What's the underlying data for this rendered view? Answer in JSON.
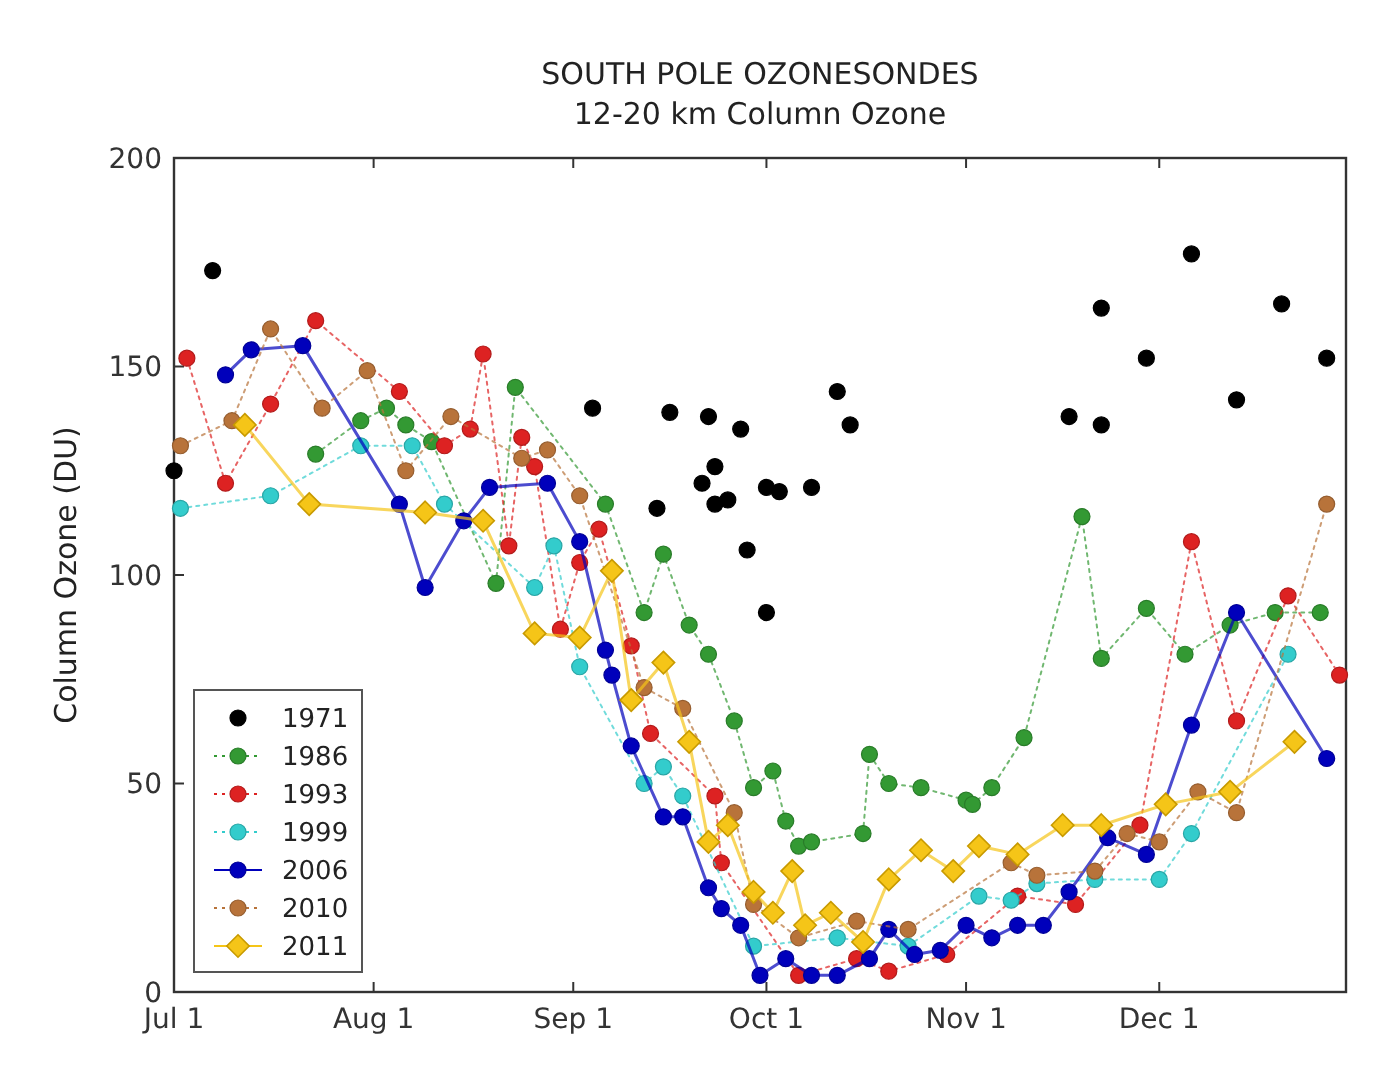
{
  "chart_data": {
    "type": "scatter",
    "title": "SOUTH POLE OZONESONDES",
    "subtitle": "12-20 km Column Ozone",
    "ylabel": "Column Ozone (DU)",
    "xlim": [
      "--07-01",
      "--12-30"
    ],
    "xticks": [
      {
        "value": "--07-01",
        "label": "Jul 1"
      },
      {
        "value": "--08-01",
        "label": "Aug 1"
      },
      {
        "value": "--09-01",
        "label": "Sep 1"
      },
      {
        "value": "--10-01",
        "label": "Oct 1"
      },
      {
        "value": "--11-01",
        "label": "Nov 1"
      },
      {
        "value": "--12-01",
        "label": "Dec 1"
      }
    ],
    "ylim": [
      0,
      200
    ],
    "yticks": [
      0,
      50,
      100,
      150,
      200
    ],
    "grid": false,
    "legend": "bottom left",
    "series": [
      {
        "name": "1971",
        "type": "scatter",
        "marker": "circle",
        "color": "#000000",
        "x": [
          "--07-01",
          "--07-07",
          "--09-04",
          "--09-14",
          "--09-16",
          "--09-21",
          "--09-22",
          "--09-23",
          "--09-23",
          "--09-25",
          "--09-27",
          "--09-28",
          "--10-01",
          "--10-01",
          "--10-03",
          "--10-08",
          "--10-12",
          "--10-14",
          "--11-17",
          "--11-22",
          "--11-22",
          "--11-29",
          "--12-06",
          "--12-13",
          "--12-20",
          "--12-27"
        ],
        "values": [
          125,
          173,
          140,
          116,
          139,
          122,
          138,
          117,
          126,
          118,
          135,
          106,
          91,
          121,
          120,
          121,
          144,
          136,
          138,
          136,
          164,
          152,
          177,
          142,
          165,
          152
        ]
      },
      {
        "name": "1986",
        "type": "line",
        "line_style": "dotted",
        "marker": "circle",
        "color": "#339933",
        "x": [
          "--07-23",
          "--07-30",
          "--08-03",
          "--08-06",
          "--08-10",
          "--08-20",
          "--08-23",
          "--09-06",
          "--09-12",
          "--09-15",
          "--09-19",
          "--09-22",
          "--09-26",
          "--09-29",
          "--10-02",
          "--10-04",
          "--10-06",
          "--10-08",
          "--10-16",
          "--10-17",
          "--10-20",
          "--10-25",
          "--11-01",
          "--11-02",
          "--11-05",
          "--11-10",
          "--11-19",
          "--11-22",
          "--11-29",
          "--12-05",
          "--12-12",
          "--12-19",
          "--12-26"
        ],
        "values": [
          129,
          137,
          140,
          136,
          132,
          98,
          145,
          117,
          91,
          105,
          88,
          81,
          65,
          49,
          53,
          41,
          35,
          36,
          38,
          57,
          50,
          49,
          46,
          45,
          49,
          61,
          114,
          80,
          92,
          81,
          88,
          91,
          91
        ]
      },
      {
        "name": "1993",
        "type": "line",
        "line_style": "dotted",
        "marker": "circle",
        "color": "#dd2222",
        "x": [
          "--07-03",
          "--07-09",
          "--07-16",
          "--07-23",
          "--08-05",
          "--08-12",
          "--08-16",
          "--08-18",
          "--08-22",
          "--08-24",
          "--08-26",
          "--08-30",
          "--09-02",
          "--09-05",
          "--09-10",
          "--09-13",
          "--09-23",
          "--09-24",
          "--10-06",
          "--10-15",
          "--10-20",
          "--10-29",
          "--11-09",
          "--11-18",
          "--11-28",
          "--12-06",
          "--12-13",
          "--12-21",
          "--12-29"
        ],
        "values": [
          152,
          122,
          141,
          161,
          144,
          131,
          135,
          153,
          107,
          133,
          126,
          87,
          103,
          111,
          83,
          62,
          47,
          31,
          4,
          8,
          5,
          9,
          23,
          21,
          40,
          108,
          65,
          95,
          76
        ]
      },
      {
        "name": "1999",
        "type": "line",
        "line_style": "dotted",
        "marker": "circle",
        "color": "#33cccc",
        "x": [
          "--07-02",
          "--07-16",
          "--07-30",
          "--08-07",
          "--08-12",
          "--08-26",
          "--08-29",
          "--09-02",
          "--09-12",
          "--09-15",
          "--09-18",
          "--09-29",
          "--10-12",
          "--10-23",
          "--11-03",
          "--11-08",
          "--11-12",
          "--11-21",
          "--12-01",
          "--12-06",
          "--12-21"
        ],
        "values": [
          116,
          119,
          131,
          131,
          117,
          97,
          107,
          78,
          50,
          54,
          47,
          11,
          13,
          11,
          23,
          22,
          26,
          27,
          27,
          38,
          81
        ]
      },
      {
        "name": "2006",
        "type": "line",
        "line_style": "solid",
        "marker": "circle",
        "color": "#0000bb",
        "x": [
          "--07-09",
          "--07-13",
          "--07-21",
          "--08-05",
          "--08-09",
          "--08-15",
          "--08-19",
          "--08-28",
          "--09-02",
          "--09-06",
          "--09-07",
          "--09-10",
          "--09-15",
          "--09-18",
          "--09-22",
          "--09-24",
          "--09-27",
          "--09-30",
          "--10-04",
          "--10-08",
          "--10-12",
          "--10-17",
          "--10-20",
          "--10-24",
          "--10-28",
          "--11-01",
          "--11-05",
          "--11-09",
          "--11-13",
          "--11-17",
          "--11-23",
          "--11-29",
          "--12-06",
          "--12-13",
          "--12-27"
        ],
        "values": [
          148,
          154,
          155,
          117,
          97,
          113,
          121,
          122,
          108,
          82,
          76,
          59,
          42,
          42,
          25,
          20,
          16,
          4,
          8,
          4,
          4,
          8,
          15,
          9,
          10,
          16,
          13,
          16,
          16,
          24,
          37,
          33,
          64,
          91,
          56
        ]
      },
      {
        "name": "2010",
        "type": "line",
        "line_style": "dotted",
        "marker": "circle",
        "color": "#b8733a",
        "x": [
          "--07-02",
          "--07-10",
          "--07-16",
          "--07-24",
          "--07-31",
          "--08-06",
          "--08-13",
          "--08-24",
          "--08-28",
          "--09-02",
          "--09-12",
          "--09-18",
          "--09-26",
          "--09-29",
          "--10-06",
          "--10-15",
          "--10-23",
          "--11-08",
          "--11-12",
          "--11-21",
          "--11-26",
          "--12-01",
          "--12-07",
          "--12-13",
          "--12-27"
        ],
        "values": [
          131,
          137,
          159,
          140,
          149,
          125,
          138,
          128,
          130,
          119,
          73,
          68,
          43,
          21,
          13,
          17,
          15,
          31,
          28,
          29,
          38,
          36,
          48,
          43,
          117
        ]
      },
      {
        "name": "2011",
        "type": "line",
        "line_style": "solid",
        "marker": "diamond",
        "color": "#f5c518",
        "x": [
          "--07-12",
          "--07-22",
          "--08-09",
          "--08-18",
          "--08-26",
          "--09-02",
          "--09-07",
          "--09-10",
          "--09-15",
          "--09-19",
          "--09-22",
          "--09-25",
          "--09-29",
          "--10-02",
          "--10-05",
          "--10-07",
          "--10-11",
          "--10-16",
          "--10-20",
          "--10-25",
          "--10-30",
          "--11-03",
          "--11-09",
          "--11-16",
          "--11-22",
          "--12-02",
          "--12-12",
          "--12-22"
        ],
        "values": [
          136,
          117,
          115,
          113,
          86,
          85,
          101,
          70,
          79,
          60,
          36,
          40,
          24,
          19,
          29,
          16,
          19,
          12,
          27,
          34,
          29,
          35,
          33,
          40,
          40,
          45,
          48,
          60
        ]
      }
    ]
  }
}
